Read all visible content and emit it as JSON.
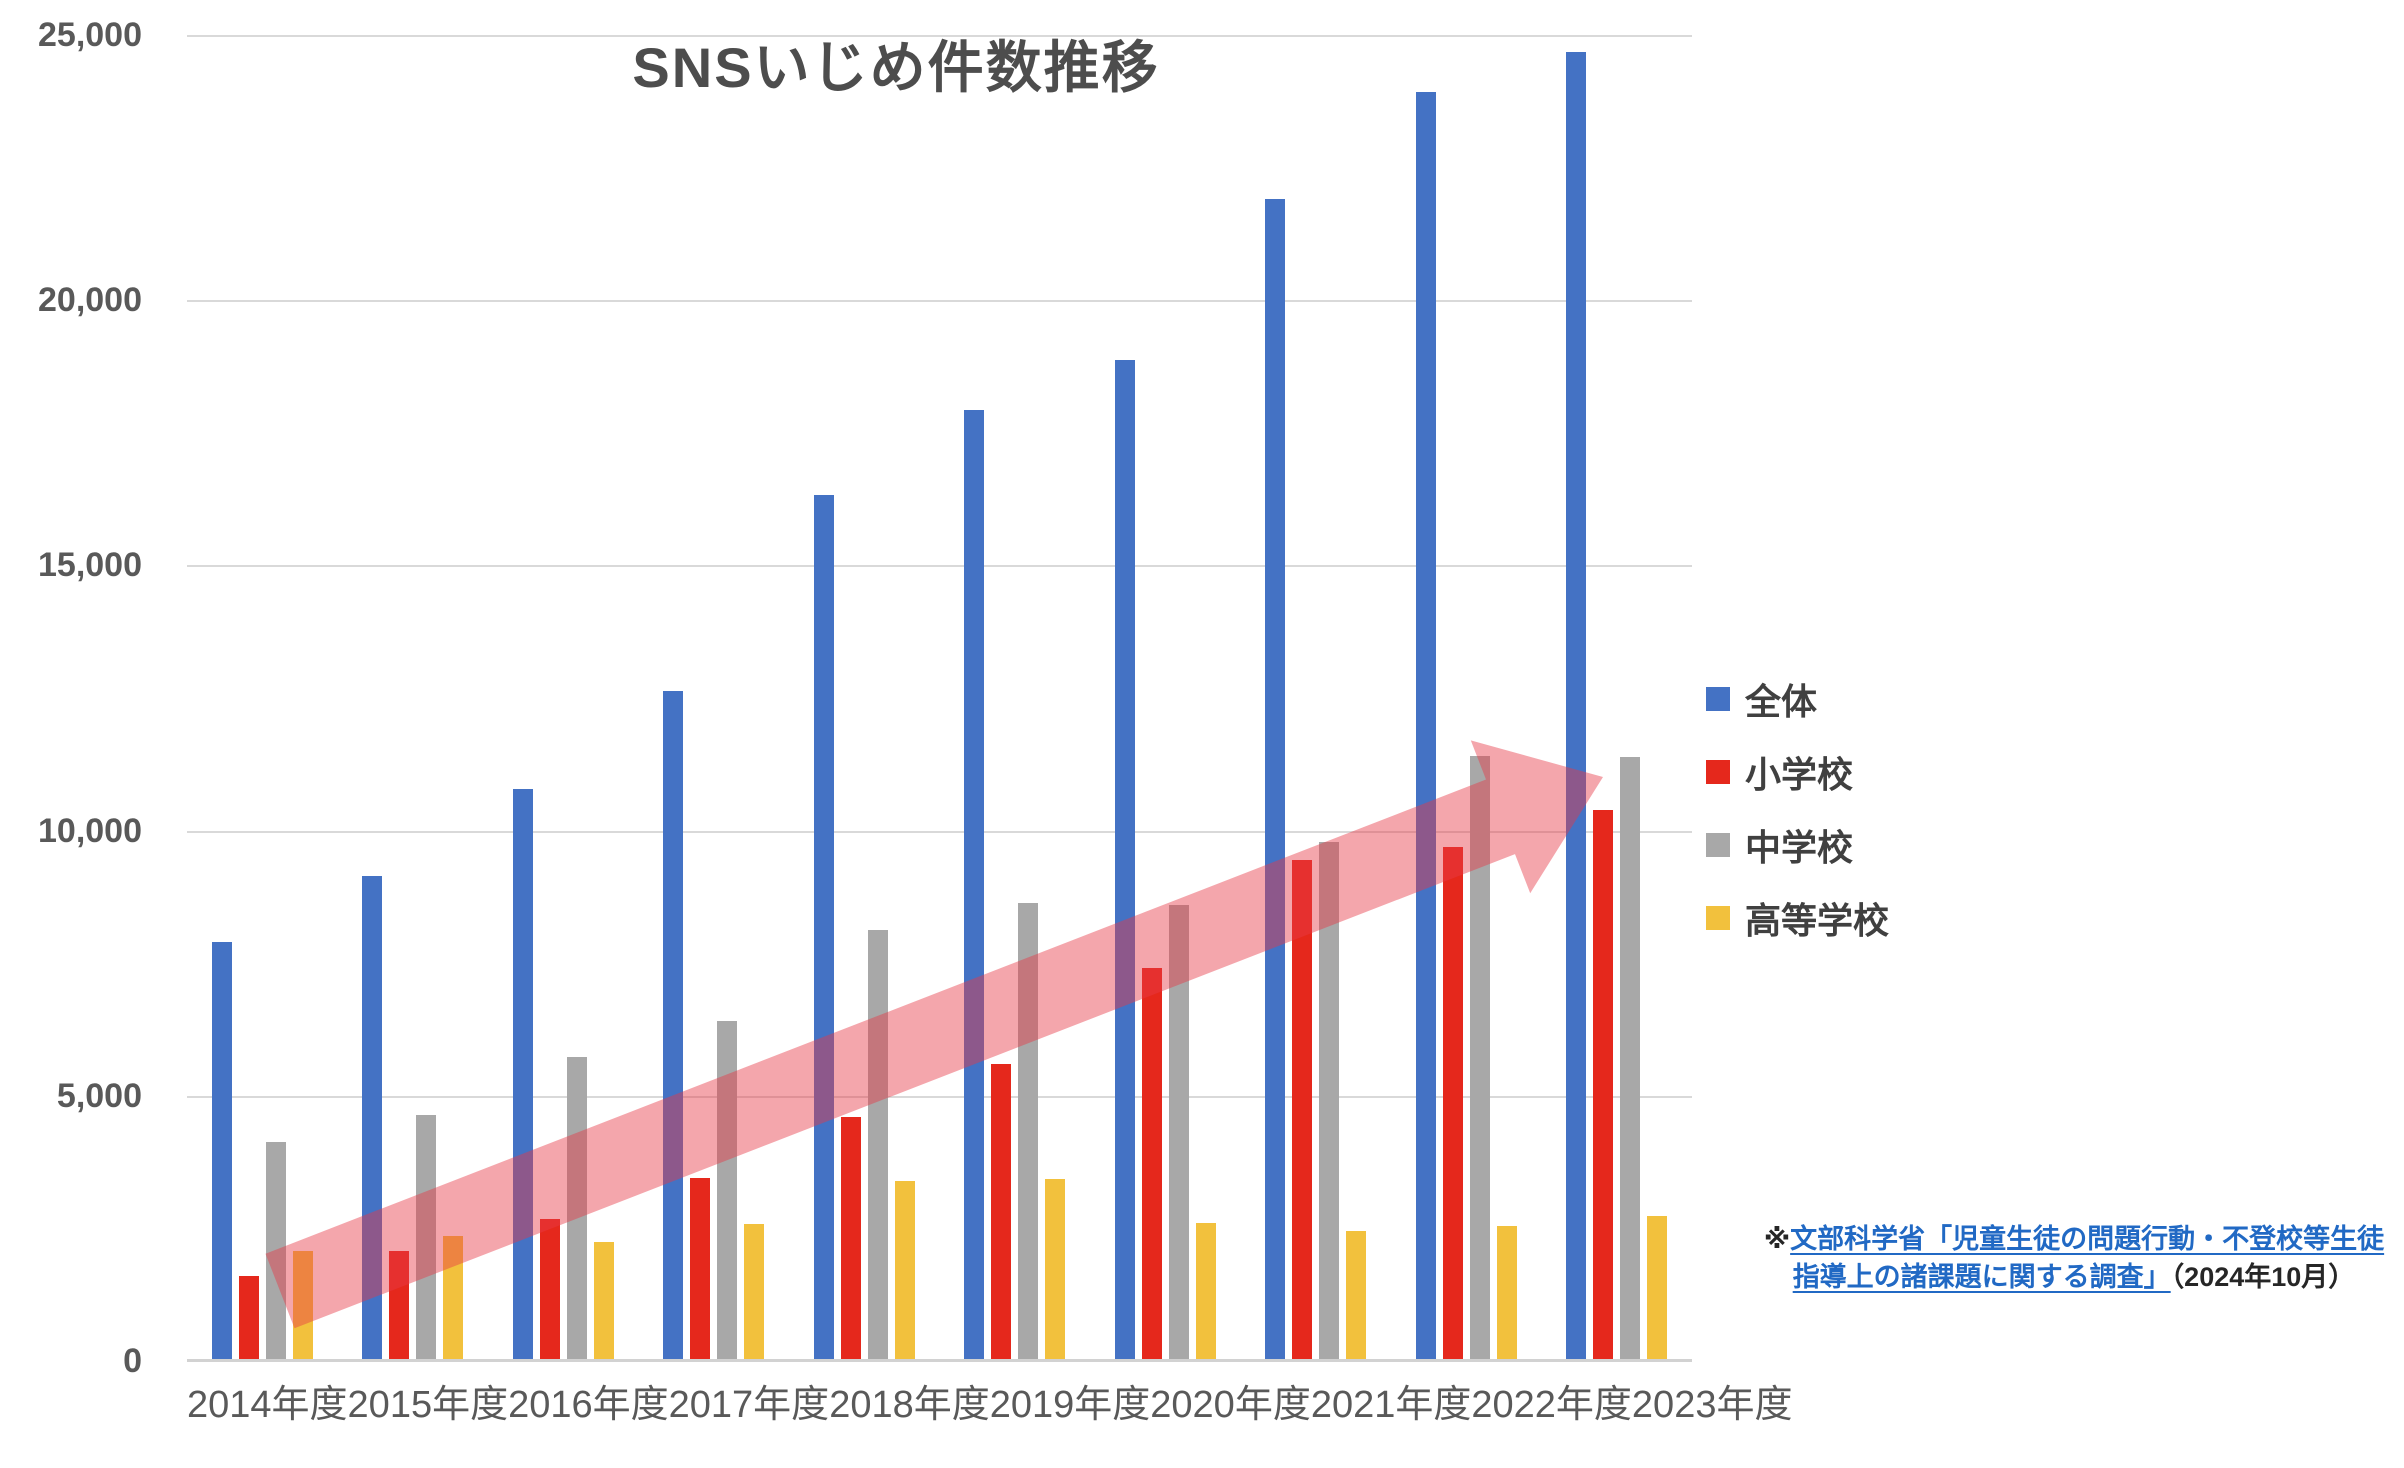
{
  "chart_title": "SNSいじめ件数推移",
  "footnote": {
    "prefix": "※",
    "link_text_line1": "文部科学省「児童生徒の問題行動・不登校等生徒",
    "link_text_line2": "指導上の諸課題に関する調査」",
    "suffix": "（2024年10月）",
    "link_color": "#2169c4"
  },
  "y_axis": {
    "tick_labels": [
      "0",
      "5,000",
      "10,000",
      "15,000",
      "20,000",
      "25,000"
    ]
  },
  "chart_data": {
    "type": "bar",
    "title": "SNSいじめ件数推移",
    "categories": [
      "2014年度",
      "2015年度",
      "2016年度",
      "2017年度",
      "2018年度",
      "2019年度",
      "2020年度",
      "2021年度",
      "2022年度",
      "2023年度"
    ],
    "series": [
      {
        "name": "全体",
        "color": "#4472C4",
        "values": [
          7898,
          9149,
          10779,
          12632,
          16334,
          17924,
          18870,
          21900,
          23920,
          24678
        ]
      },
      {
        "name": "小学校",
        "color": "#E5281C",
        "values": [
          1607,
          2075,
          2679,
          3455,
          4606,
          5608,
          7407,
          9454,
          9690,
          10380
        ]
      },
      {
        "name": "中学校",
        "color": "#A8A8A8",
        "values": [
          4133,
          4644,
          5723,
          6411,
          8128,
          8629,
          8603,
          9783,
          11404,
          11383
        ]
      },
      {
        "name": "高等学校",
        "color": "#F2C13D",
        "values": [
          2078,
          2365,
          2239,
          2587,
          3387,
          3437,
          2598,
          2454,
          2541,
          2732
        ]
      }
    ],
    "ylim": [
      0,
      25000
    ],
    "ytick_interval": 5000,
    "grid": true,
    "legend_position": "right",
    "annotation": {
      "type": "trend-arrow",
      "description": "semi-transparent red block arrow pointing up-right across the bars",
      "color": "#E63946",
      "opacity": 0.45
    }
  }
}
